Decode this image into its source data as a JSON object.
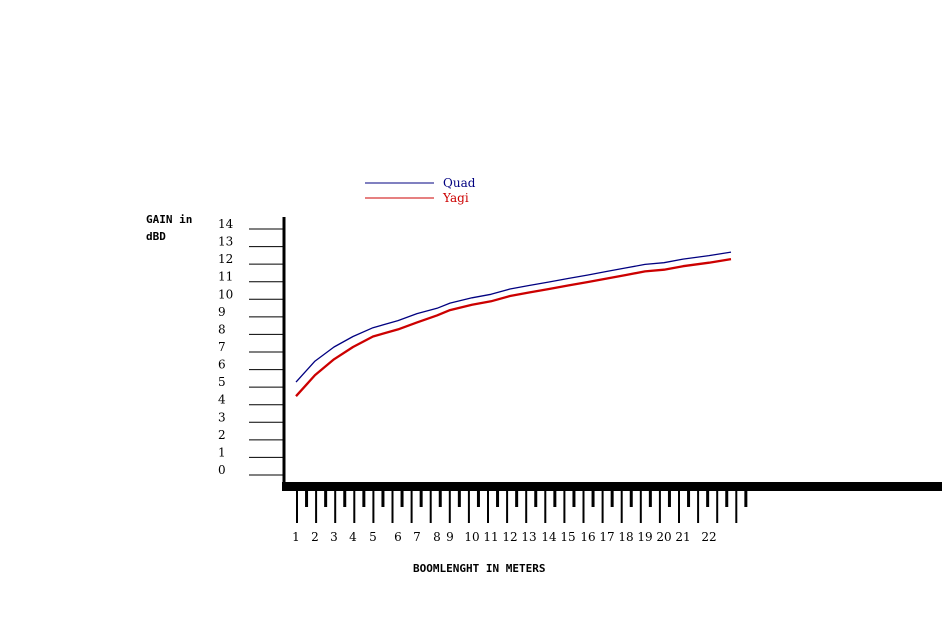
{
  "chart_data": {
    "type": "line",
    "title": "",
    "ylabel": [
      "GAIN in",
      "dBD"
    ],
    "xlabel": "BOOMLENGHT IN METERS",
    "y_ticks": [
      "14",
      "13",
      "12",
      "11",
      "10",
      "9",
      "8",
      "7",
      "6",
      "5",
      "4",
      "3",
      "2",
      "1",
      "0"
    ],
    "x_ticks": [
      "1",
      "2",
      "3",
      "4",
      "5",
      "6",
      "7",
      "8",
      "9",
      "10",
      "11",
      "12",
      "13",
      "14",
      "15",
      "16",
      "17",
      "18",
      "19",
      "20",
      "21",
      "22"
    ],
    "ylim": [
      0,
      14
    ],
    "grid": false,
    "legend_position": "top-left",
    "series": [
      {
        "name": "Quad",
        "color": "#000080",
        "points": [
          [
            1,
            5.0
          ],
          [
            1.5,
            5.6
          ],
          [
            2,
            6.2
          ],
          [
            3,
            7.0
          ],
          [
            4,
            7.6
          ],
          [
            5,
            8.1
          ],
          [
            6,
            8.5
          ],
          [
            7,
            8.9
          ],
          [
            8,
            9.2
          ],
          [
            9,
            9.5
          ],
          [
            10,
            9.8
          ],
          [
            11,
            10.0
          ],
          [
            12,
            10.3
          ],
          [
            13,
            10.5
          ],
          [
            14,
            10.7
          ],
          [
            15,
            10.9
          ],
          [
            16,
            11.1
          ],
          [
            17,
            11.3
          ],
          [
            18,
            11.5
          ],
          [
            19,
            11.7
          ],
          [
            20,
            11.8
          ],
          [
            21,
            12.0
          ],
          [
            22,
            12.2
          ],
          [
            23,
            12.4
          ]
        ]
      },
      {
        "name": "Yagi",
        "color": "#cc0000",
        "points": [
          [
            1,
            4.2
          ],
          [
            1.5,
            4.8
          ],
          [
            2,
            5.4
          ],
          [
            3,
            6.3
          ],
          [
            4,
            7.0
          ],
          [
            5,
            7.6
          ],
          [
            6,
            8.0
          ],
          [
            7,
            8.4
          ],
          [
            8,
            8.8
          ],
          [
            9,
            9.1
          ],
          [
            10,
            9.4
          ],
          [
            11,
            9.6
          ],
          [
            12,
            9.9
          ],
          [
            13,
            10.1
          ],
          [
            14,
            10.3
          ],
          [
            15,
            10.5
          ],
          [
            16,
            10.7
          ],
          [
            17,
            10.9
          ],
          [
            18,
            11.1
          ],
          [
            19,
            11.3
          ],
          [
            20,
            11.4
          ],
          [
            21,
            11.6
          ],
          [
            22,
            11.8
          ],
          [
            23,
            12.0
          ]
        ]
      }
    ]
  }
}
